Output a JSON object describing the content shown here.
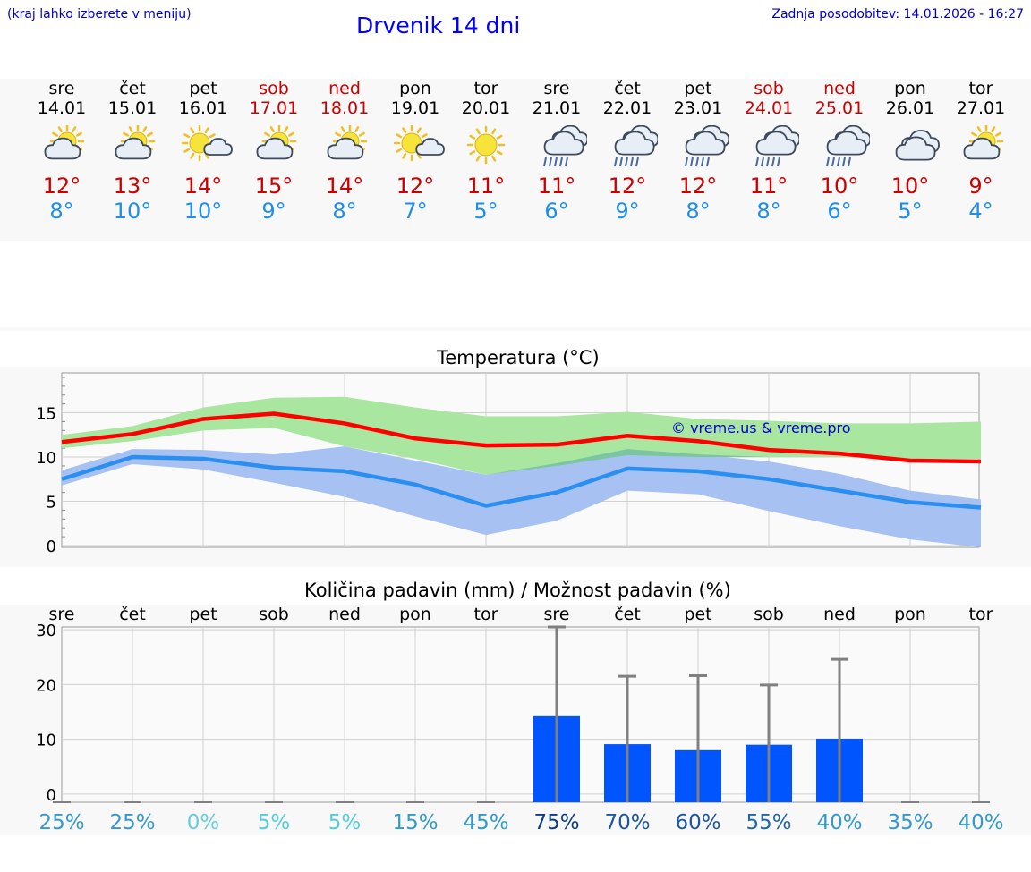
{
  "header": {
    "hint": "(kraj lahko izberete v meniju)",
    "title": "Drvenik 14 dni",
    "updated": "Zadnja posodobitev: 14.01.2026 - 16:27"
  },
  "days": [
    {
      "name": "sre",
      "date": "14.01",
      "weekend": false,
      "icon": "partly-cloudy-sun-icon",
      "tmax": "12°",
      "tmin": "8°"
    },
    {
      "name": "čet",
      "date": "15.01",
      "weekend": false,
      "icon": "partly-cloudy-sun-icon",
      "tmax": "13°",
      "tmin": "10°"
    },
    {
      "name": "pet",
      "date": "16.01",
      "weekend": false,
      "icon": "mostly-sunny-icon",
      "tmax": "14°",
      "tmin": "10°"
    },
    {
      "name": "sob",
      "date": "17.01",
      "weekend": true,
      "icon": "partly-cloudy-sun-icon",
      "tmax": "15°",
      "tmin": "9°"
    },
    {
      "name": "ned",
      "date": "18.01",
      "weekend": true,
      "icon": "partly-cloudy-sun-icon",
      "tmax": "14°",
      "tmin": "8°"
    },
    {
      "name": "pon",
      "date": "19.01",
      "weekend": false,
      "icon": "mostly-sunny-icon",
      "tmax": "12°",
      "tmin": "7°"
    },
    {
      "name": "tor",
      "date": "20.01",
      "weekend": false,
      "icon": "sunny-icon",
      "tmax": "11°",
      "tmin": "5°"
    },
    {
      "name": "sre",
      "date": "21.01",
      "weekend": false,
      "icon": "rain-cloud-icon",
      "tmax": "11°",
      "tmin": "6°"
    },
    {
      "name": "čet",
      "date": "22.01",
      "weekend": false,
      "icon": "rain-cloud-icon",
      "tmax": "12°",
      "tmin": "9°"
    },
    {
      "name": "pet",
      "date": "23.01",
      "weekend": false,
      "icon": "rain-cloud-icon",
      "tmax": "12°",
      "tmin": "8°"
    },
    {
      "name": "sob",
      "date": "24.01",
      "weekend": true,
      "icon": "rain-cloud-icon",
      "tmax": "11°",
      "tmin": "8°"
    },
    {
      "name": "ned",
      "date": "25.01",
      "weekend": true,
      "icon": "rain-cloud-icon",
      "tmax": "10°",
      "tmin": "6°"
    },
    {
      "name": "pon",
      "date": "26.01",
      "weekend": false,
      "icon": "cloudy-icon",
      "tmax": "10°",
      "tmin": "5°"
    },
    {
      "name": "tor",
      "date": "27.01",
      "weekend": false,
      "icon": "partly-cloudy-sun-icon",
      "tmax": "9°",
      "tmin": "4°"
    }
  ],
  "colors": {
    "max_line": "#ff0000",
    "min_line": "#2a8ff0",
    "max_band": "#a9e6a0",
    "min_band": "#a6c1f2",
    "overlap_band": "#7cc5a3",
    "bar": "#0055ff",
    "error": "#808080",
    "weekend": "#cc0000",
    "title": "#0000ff",
    "watermark": "#0000cc"
  },
  "chart_data": [
    {
      "type": "line",
      "title": "Temperatura (°C)",
      "watermark": "© vreme.us & vreme.pro",
      "categories": [
        "sre",
        "čet",
        "pet",
        "sob",
        "ned",
        "pon",
        "tor",
        "sre",
        "čet",
        "pet",
        "sob",
        "ned",
        "pon",
        "tor"
      ],
      "ylim": [
        -0.2,
        19.5
      ],
      "yticks": [
        0,
        5,
        10,
        15
      ],
      "series": [
        {
          "name": "max",
          "values": [
            11.7,
            12.6,
            14.3,
            14.9,
            13.8,
            12.1,
            11.3,
            11.4,
            12.4,
            11.8,
            10.8,
            10.4,
            9.6,
            9.5
          ]
        },
        {
          "name": "min",
          "values": [
            7.5,
            10.0,
            9.8,
            8.8,
            8.4,
            6.9,
            4.5,
            6.0,
            8.7,
            8.4,
            7.5,
            6.2,
            4.9,
            4.3
          ]
        }
      ],
      "bands": [
        {
          "name": "max_range",
          "low": [
            11.0,
            11.8,
            13.0,
            13.3,
            11.2,
            9.8,
            8.0,
            9.0,
            10.2,
            10.0,
            10.0,
            10.0,
            9.8,
            9.8
          ],
          "high": [
            12.5,
            13.5,
            15.6,
            16.7,
            16.8,
            15.6,
            14.6,
            14.6,
            15.1,
            14.3,
            14.1,
            13.8,
            13.8,
            14.0
          ]
        },
        {
          "name": "min_range",
          "low": [
            6.8,
            9.2,
            8.6,
            7.1,
            5.5,
            3.3,
            1.2,
            2.8,
            6.2,
            5.8,
            3.9,
            2.2,
            0.7,
            -0.2
          ],
          "high": [
            8.5,
            10.9,
            10.8,
            10.3,
            11.2,
            9.6,
            8.0,
            9.3,
            10.9,
            10.3,
            9.5,
            8.1,
            6.2,
            5.2
          ]
        }
      ]
    },
    {
      "type": "bar",
      "title": "Količina padavin (mm) / Možnost padavin (%)",
      "categories": [
        "sre",
        "čet",
        "pet",
        "sob",
        "ned",
        "pon",
        "tor",
        "sre",
        "čet",
        "pet",
        "sob",
        "ned",
        "pon",
        "tor"
      ],
      "ylim": [
        -1.5,
        30.5
      ],
      "yticks": [
        0,
        10,
        20,
        30
      ],
      "values": [
        0,
        0,
        0,
        0,
        0,
        0,
        0,
        14.2,
        9.1,
        8.0,
        9.0,
        10.1,
        0,
        0
      ],
      "error_upper": [
        0,
        0,
        0,
        0,
        0,
        0,
        0,
        30.5,
        21.5,
        21.6,
        19.9,
        24.6,
        0,
        0
      ],
      "chance": [
        "25%",
        "25%",
        "0%",
        "5%",
        "5%",
        "15%",
        "45%",
        "75%",
        "70%",
        "60%",
        "55%",
        "40%",
        "35%",
        "40%"
      ],
      "chance_colors": [
        "#3399cc",
        "#3399cc",
        "#66ccdd",
        "#55ccdd",
        "#55ccdd",
        "#3399cc",
        "#3399cc",
        "#0a3c88",
        "#1c55a3",
        "#1c55a3",
        "#2266aa",
        "#3399cc",
        "#3399cc",
        "#3399cc"
      ]
    }
  ]
}
